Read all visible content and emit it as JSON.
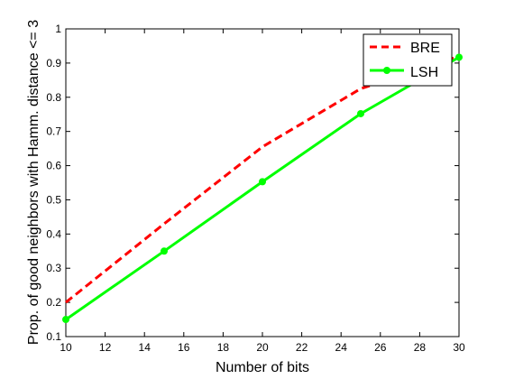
{
  "chart_data": {
    "type": "line",
    "xlabel": "Number of bits",
    "ylabel": "Prop. of good neighbors with Hamm. distance <= 3",
    "xlim": [
      10,
      30
    ],
    "ylim": [
      0.1,
      1
    ],
    "xticks": [
      10,
      12,
      14,
      16,
      18,
      20,
      22,
      24,
      26,
      28,
      30
    ],
    "yticks": [
      0.1,
      0.2,
      0.3,
      0.4,
      0.5,
      0.6,
      0.7,
      0.8,
      0.9,
      1
    ],
    "ytick_labels": [
      "0.1",
      "0.2",
      "0.3",
      "0.4",
      "0.5",
      "0.6",
      "0.7",
      "0.8",
      "0.9",
      "1"
    ],
    "grid": false,
    "legend_position": "top-right",
    "series": [
      {
        "name": "BRE",
        "color": "#ff0000",
        "style": "dashed",
        "marker": "none",
        "x": [
          10,
          15,
          20,
          25,
          30
        ],
        "y": [
          0.2,
          0.43,
          0.655,
          0.825,
          0.92
        ]
      },
      {
        "name": "LSH",
        "color": "#00ff00",
        "style": "solid",
        "marker": "circle",
        "x": [
          10,
          15,
          20,
          25,
          30
        ],
        "y": [
          0.15,
          0.35,
          0.553,
          0.752,
          0.917
        ]
      }
    ]
  }
}
